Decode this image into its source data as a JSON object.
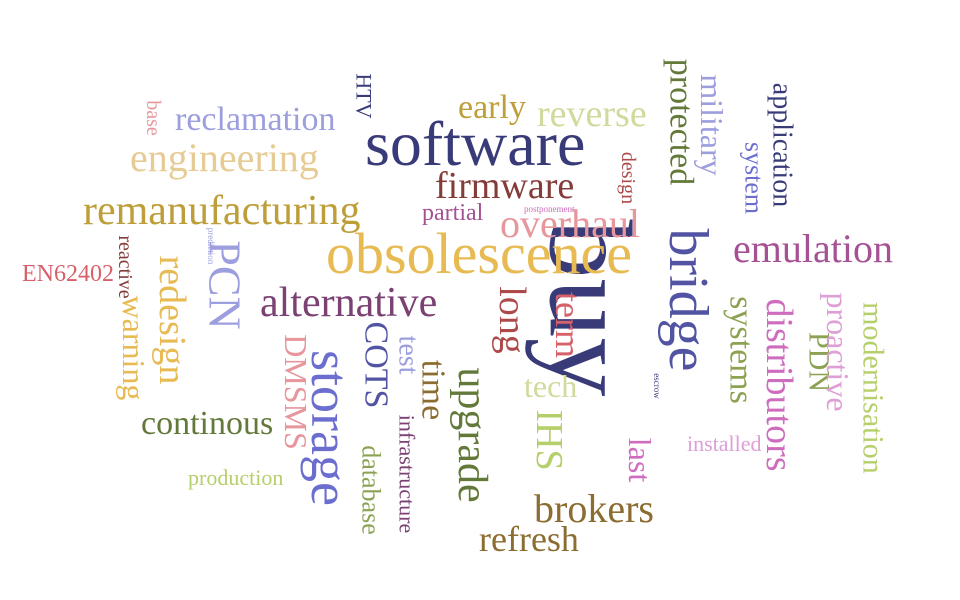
{
  "words": [
    {
      "text": "software",
      "color": "#393b79"
    },
    {
      "text": "buy",
      "color": "#393b79"
    },
    {
      "text": "obsolescence",
      "color": "#e7ba52"
    },
    {
      "text": "bridge",
      "color": "#5254a3"
    },
    {
      "text": "storage",
      "color": "#6b6ecf"
    },
    {
      "text": "remanufacturing",
      "color": "#bd9e39"
    },
    {
      "text": "engineering",
      "color": "#e7cb94"
    },
    {
      "text": "reclamation",
      "color": "#9c9ede"
    },
    {
      "text": "reverse",
      "color": "#cedb9c"
    },
    {
      "text": "early",
      "color": "#bd9e39"
    },
    {
      "text": "firmware",
      "color": "#843c39"
    },
    {
      "text": "overhaul",
      "color": "#e7969c"
    },
    {
      "text": "partial",
      "color": "#a55194"
    },
    {
      "text": "postponement",
      "color": "#ce6dbd"
    },
    {
      "text": "design",
      "color": "#ad494a"
    },
    {
      "text": "protected",
      "color": "#637939"
    },
    {
      "text": "military",
      "color": "#9c9ede"
    },
    {
      "text": "system",
      "color": "#6b6ecf"
    },
    {
      "text": "application",
      "color": "#393b79"
    },
    {
      "text": "emulation",
      "color": "#a55194"
    },
    {
      "text": "HTV",
      "color": "#393b79"
    },
    {
      "text": "base",
      "color": "#e7969c"
    },
    {
      "text": "alternative",
      "color": "#7b4173"
    },
    {
      "text": "PCN",
      "color": "#9c9ede"
    },
    {
      "text": "redesign",
      "color": "#e7ba52"
    },
    {
      "text": "warning",
      "color": "#e7ba52"
    },
    {
      "text": "reactive",
      "color": "#843c39"
    },
    {
      "text": "prediction",
      "color": "#9c9ede"
    },
    {
      "text": "EN62402",
      "color": "#d6616b"
    },
    {
      "text": "continous",
      "color": "#637939"
    },
    {
      "text": "DMSMS",
      "color": "#e7969c"
    },
    {
      "text": "COTS",
      "color": "#5254a3"
    },
    {
      "text": "test",
      "color": "#9c9ede"
    },
    {
      "text": "time",
      "color": "#8c6d31"
    },
    {
      "text": "upgrade",
      "color": "#637939"
    },
    {
      "text": "long",
      "color": "#ad494a"
    },
    {
      "text": "term",
      "color": "#d6616b"
    },
    {
      "text": "tech",
      "color": "#cedb9c"
    },
    {
      "text": "IHS",
      "color": "#b5cf6b"
    },
    {
      "text": "escrow",
      "color": "#393b79"
    },
    {
      "text": "last",
      "color": "#ce6dbd"
    },
    {
      "text": "installed",
      "color": "#de9ed6"
    },
    {
      "text": "systems",
      "color": "#8ca252"
    },
    {
      "text": "distributors",
      "color": "#ce6dbd"
    },
    {
      "text": "PDN",
      "color": "#8ca252"
    },
    {
      "text": "proactive",
      "color": "#de9ed6"
    },
    {
      "text": "modernisation",
      "color": "#b5cf6b"
    },
    {
      "text": "infrastructure",
      "color": "#7b4173"
    },
    {
      "text": "database",
      "color": "#8ca252"
    },
    {
      "text": "brokers",
      "color": "#8c6d31"
    },
    {
      "text": "refresh",
      "color": "#8c6d31"
    },
    {
      "text": "production",
      "color": "#b5cf6b"
    }
  ]
}
